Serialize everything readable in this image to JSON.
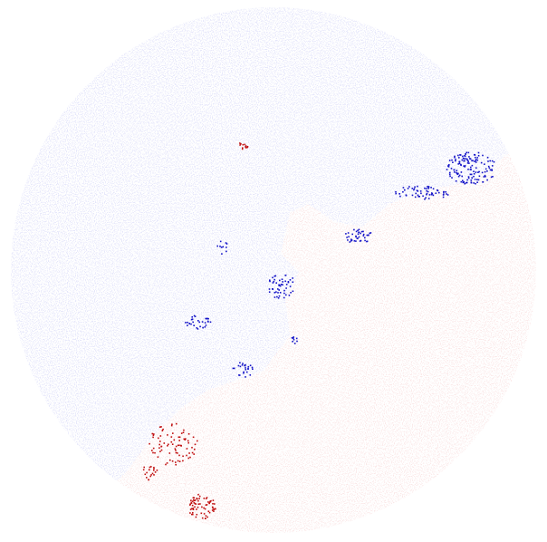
{
  "image": {
    "subject": "solar-magnetogram-disk",
    "colors": {
      "background": "#ffffff",
      "negative_faint": "#c9cbf4",
      "negative_strong": "#1414c8",
      "positive_faint": "#f6cfcf",
      "positive_strong": "#c01010"
    }
  }
}
